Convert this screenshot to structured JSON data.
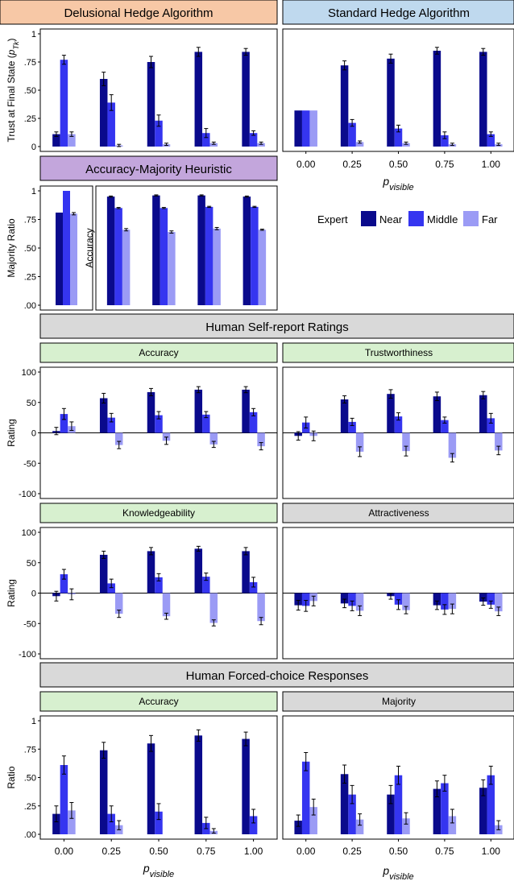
{
  "colors": {
    "near": "#0a0a8c",
    "middle": "#3535f0",
    "far": "#9b9bf5",
    "strip_delusional": "#f7c8a6",
    "strip_standard": "#bfd9ee",
    "strip_heuristic": "#c3a6dc",
    "strip_selfreport": "#d7f0cf",
    "strip_grey": "#d9d9d9"
  },
  "strips": {
    "delusional": "Delusional Hedge Algorithm",
    "standard": "Standard Hedge Algorithm",
    "heuristic": "Accuracy-Majority Heuristic",
    "selfreport": "Human Self-report Ratings",
    "forced": "Human Forced-choice Responses",
    "sr_accuracy": "Accuracy",
    "sr_trust": "Trustworthiness",
    "sr_knowledge": "Knowledgeability",
    "sr_attract": "Attractiveness",
    "fc_accuracy": "Accuracy",
    "fc_majority": "Majority"
  },
  "legend": {
    "title": "Expert",
    "items": [
      {
        "label": "Near",
        "color_key": "near"
      },
      {
        "label": "Middle",
        "color_key": "middle"
      },
      {
        "label": "Far",
        "color_key": "far"
      }
    ]
  },
  "xaxis_label": "p_visible",
  "x_ticks": [
    "0.00",
    "0.25",
    "0.50",
    "0.75",
    "1.00"
  ],
  "chart_data": [
    {
      "id": "delusional",
      "type": "bar",
      "ylabel": "Trust at Final State (p_Tk)",
      "ylim": [
        0,
        1
      ],
      "y_ticks": [
        "0",
        ".25",
        ".50",
        ".75",
        "1"
      ],
      "categories": [
        "0.00",
        "0.25",
        "0.50",
        "0.75",
        "1.00"
      ],
      "series": [
        {
          "name": "Near",
          "values": [
            0.11,
            0.6,
            0.75,
            0.84,
            0.84
          ],
          "err": [
            0.02,
            0.06,
            0.05,
            0.04,
            0.03
          ]
        },
        {
          "name": "Middle",
          "values": [
            0.77,
            0.39,
            0.23,
            0.12,
            0.12
          ],
          "err": [
            0.04,
            0.07,
            0.05,
            0.04,
            0.02
          ]
        },
        {
          "name": "Far",
          "values": [
            0.11,
            0.01,
            0.02,
            0.03,
            0.03
          ],
          "err": [
            0.02,
            0.01,
            0.01,
            0.01,
            0.01
          ]
        }
      ]
    },
    {
      "id": "standard",
      "type": "bar",
      "ylim": [
        0,
        1
      ],
      "categories": [
        "0.00",
        "0.25",
        "0.50",
        "0.75",
        "1.00"
      ],
      "series": [
        {
          "name": "Near",
          "values": [
            0.32,
            0.72,
            0.78,
            0.85,
            0.84
          ],
          "err": [
            0,
            0.04,
            0.04,
            0.03,
            0.03
          ]
        },
        {
          "name": "Middle",
          "values": [
            0.32,
            0.21,
            0.16,
            0.1,
            0.11
          ],
          "err": [
            0,
            0.03,
            0.03,
            0.03,
            0.02
          ]
        },
        {
          "name": "Far",
          "values": [
            0.32,
            0.04,
            0.03,
            0.02,
            0.02
          ],
          "err": [
            0,
            0.01,
            0.01,
            0.01,
            0.01
          ]
        }
      ]
    },
    {
      "id": "majority_ratio",
      "type": "bar",
      "ylabel": "Majority Ratio",
      "ylim": [
        0,
        1
      ],
      "y_ticks": [
        ".00",
        ".25",
        ".50",
        ".75",
        "1"
      ],
      "categories": [
        ""
      ],
      "series": [
        {
          "name": "Near",
          "values": [
            0.81
          ],
          "err": [
            0
          ]
        },
        {
          "name": "Middle",
          "values": [
            1.0
          ],
          "err": [
            0
          ]
        },
        {
          "name": "Far",
          "values": [
            0.8
          ],
          "err": [
            0.01
          ]
        }
      ]
    },
    {
      "id": "heuristic_accuracy",
      "type": "bar",
      "ylabel": "Accuracy",
      "ylim": [
        0,
        1
      ],
      "categories": [
        "0.25",
        "0.50",
        "0.75",
        "1.00"
      ],
      "series": [
        {
          "name": "Near",
          "values": [
            0.95,
            0.96,
            0.96,
            0.95
          ],
          "err": [
            0.005,
            0.005,
            0.005,
            0.005
          ]
        },
        {
          "name": "Middle",
          "values": [
            0.85,
            0.85,
            0.86,
            0.86
          ],
          "err": [
            0.005,
            0.005,
            0.005,
            0.005
          ]
        },
        {
          "name": "Far",
          "values": [
            0.66,
            0.64,
            0.67,
            0.66
          ],
          "err": [
            0.01,
            0.01,
            0.01,
            0.005
          ]
        }
      ]
    },
    {
      "id": "sr_accuracy",
      "type": "bar",
      "ylabel": "Rating",
      "ylim": [
        -100,
        100
      ],
      "y_ticks": [
        "-100",
        "-50",
        "0",
        "50",
        "100"
      ],
      "categories": [
        "0.00",
        "0.25",
        "0.50",
        "0.75",
        "1.00"
      ],
      "series": [
        {
          "name": "Near",
          "values": [
            3,
            57,
            67,
            71,
            71
          ],
          "err": [
            6,
            8,
            6,
            5,
            5
          ]
        },
        {
          "name": "Middle",
          "values": [
            31,
            25,
            29,
            30,
            34
          ],
          "err": [
            9,
            7,
            6,
            5,
            6
          ]
        },
        {
          "name": "Far",
          "values": [
            11,
            -20,
            -13,
            -19,
            -22
          ],
          "err": [
            7,
            6,
            6,
            5,
            6
          ]
        }
      ]
    },
    {
      "id": "sr_trust",
      "type": "bar",
      "ylim": [
        -100,
        100
      ],
      "categories": [
        "0.00",
        "0.25",
        "0.50",
        "0.75",
        "1.00"
      ],
      "series": [
        {
          "name": "Near",
          "values": [
            -5,
            55,
            64,
            60,
            62
          ],
          "err": [
            7,
            6,
            7,
            7,
            6
          ]
        },
        {
          "name": "Middle",
          "values": [
            17,
            18,
            27,
            21,
            24
          ],
          "err": [
            9,
            6,
            6,
            5,
            8
          ]
        },
        {
          "name": "Far",
          "values": [
            -5,
            -31,
            -30,
            -41,
            -29
          ],
          "err": [
            8,
            8,
            8,
            7,
            7
          ]
        }
      ]
    },
    {
      "id": "sr_knowledge",
      "type": "bar",
      "ylabel": "Rating",
      "ylim": [
        -100,
        100
      ],
      "y_ticks": [
        "-100",
        "-50",
        "0",
        "50",
        "100"
      ],
      "categories": [
        "0.00",
        "0.25",
        "0.50",
        "0.75",
        "1.00"
      ],
      "series": [
        {
          "name": "Near",
          "values": [
            -5,
            63,
            69,
            73,
            69
          ],
          "err": [
            8,
            6,
            6,
            4,
            6
          ]
        },
        {
          "name": "Middle",
          "values": [
            31,
            16,
            26,
            27,
            18
          ],
          "err": [
            8,
            7,
            6,
            6,
            8
          ]
        },
        {
          "name": "Far",
          "values": [
            -2,
            -34,
            -38,
            -49,
            -46
          ],
          "err": [
            9,
            6,
            5,
            5,
            6
          ]
        }
      ]
    },
    {
      "id": "sr_attract",
      "type": "bar",
      "ylim": [
        -100,
        100
      ],
      "categories": [
        "0.00",
        "0.25",
        "0.50",
        "0.75",
        "1.00"
      ],
      "series": [
        {
          "name": "Near",
          "values": [
            -20,
            -17,
            -5,
            -20,
            -14
          ],
          "err": [
            8,
            7,
            5,
            7,
            6
          ]
        },
        {
          "name": "Middle",
          "values": [
            -21,
            -21,
            -19,
            -27,
            -19
          ],
          "err": [
            9,
            8,
            8,
            8,
            6
          ]
        },
        {
          "name": "Far",
          "values": [
            -13,
            -29,
            -28,
            -26,
            -30
          ],
          "err": [
            8,
            8,
            6,
            8,
            7
          ]
        }
      ]
    },
    {
      "id": "fc_accuracy",
      "type": "bar",
      "ylabel": "Ratio",
      "ylim": [
        0,
        1
      ],
      "y_ticks": [
        ".00",
        ".25",
        ".50",
        ".75",
        "1"
      ],
      "categories": [
        "0.00",
        "0.25",
        "0.50",
        "0.75",
        "1.00"
      ],
      "series": [
        {
          "name": "Near",
          "values": [
            0.18,
            0.74,
            0.8,
            0.87,
            0.84
          ],
          "err": [
            0.07,
            0.07,
            0.07,
            0.05,
            0.06
          ]
        },
        {
          "name": "Middle",
          "values": [
            0.61,
            0.18,
            0.2,
            0.1,
            0.16
          ],
          "err": [
            0.08,
            0.07,
            0.07,
            0.05,
            0.06
          ]
        },
        {
          "name": "Far",
          "values": [
            0.21,
            0.08,
            0.0,
            0.03,
            0.0
          ],
          "err": [
            0.07,
            0.04,
            0.0,
            0.02,
            0.0
          ]
        }
      ]
    },
    {
      "id": "fc_majority",
      "type": "bar",
      "ylim": [
        0,
        1
      ],
      "categories": [
        "0.00",
        "0.25",
        "0.50",
        "0.75",
        "1.00"
      ],
      "series": [
        {
          "name": "Near",
          "values": [
            0.12,
            0.53,
            0.35,
            0.4,
            0.41
          ],
          "err": [
            0.05,
            0.08,
            0.08,
            0.07,
            0.07
          ]
        },
        {
          "name": "Middle",
          "values": [
            0.64,
            0.35,
            0.52,
            0.45,
            0.52
          ],
          "err": [
            0.08,
            0.08,
            0.08,
            0.07,
            0.08
          ]
        },
        {
          "name": "Far",
          "values": [
            0.24,
            0.13,
            0.14,
            0.16,
            0.08
          ],
          "err": [
            0.07,
            0.05,
            0.05,
            0.06,
            0.04
          ]
        }
      ]
    }
  ]
}
